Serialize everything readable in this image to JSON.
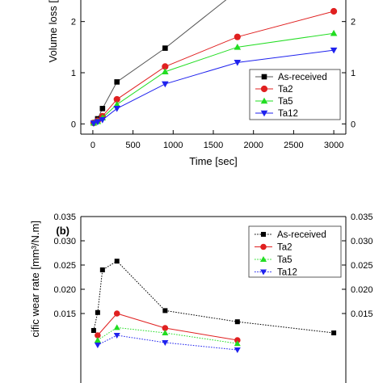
{
  "chart_data": [
    {
      "type": "line",
      "xlabel": "Time [sec]",
      "ylabel": "Volume loss [",
      "xlim": [
        -150,
        3150
      ],
      "ylim": [
        -0.2,
        2.5
      ],
      "x_ticks": [
        0,
        500,
        1000,
        1500,
        2000,
        2500,
        3000
      ],
      "x_tick_labels": [
        "0",
        "500",
        "1000",
        "1500",
        "2000",
        "2500",
        "3000"
      ],
      "y_ticks": [
        0,
        1,
        2
      ],
      "y_tick_labels": [
        "0",
        "1",
        "2"
      ],
      "right_y_tick_labels": [
        "0",
        "1",
        "2"
      ],
      "legend_position": "lower-right",
      "grid": false,
      "series": [
        {
          "name": "As-received",
          "marker": "square",
          "color": "#000000",
          "line_color": "#555555",
          "x": [
            10,
            60,
            120,
            300,
            900,
            1800
          ],
          "y": [
            0.02,
            0.1,
            0.3,
            0.82,
            1.48,
            2.6
          ]
        },
        {
          "name": "Ta2",
          "marker": "circle",
          "color": "#e02020",
          "line_color": "#e02020",
          "x": [
            10,
            60,
            120,
            300,
            900,
            1800,
            3000
          ],
          "y": [
            0.02,
            0.06,
            0.15,
            0.48,
            1.12,
            1.7,
            2.2
          ]
        },
        {
          "name": "Ta5",
          "marker": "triangle-up",
          "color": "#22dd22",
          "line_color": "#22dd22",
          "x": [
            10,
            60,
            120,
            300,
            900,
            1800,
            3000
          ],
          "y": [
            0.02,
            0.05,
            0.12,
            0.38,
            1.02,
            1.5,
            1.77
          ]
        },
        {
          "name": "Ta12",
          "marker": "triangle-down",
          "color": "#1f22ee",
          "line_color": "#1f22ee",
          "x": [
            10,
            60,
            120,
            300,
            900,
            1800,
            3000
          ],
          "y": [
            0.01,
            0.04,
            0.08,
            0.3,
            0.78,
            1.2,
            1.44
          ]
        }
      ]
    },
    {
      "type": "line",
      "panel_label": "(b)",
      "xlabel": "",
      "ylabel": "cific wear rate [mm³/N.m]",
      "xlim": [
        -150,
        3150
      ],
      "ylim": [
        0.0,
        0.035
      ],
      "y_ticks": [
        0.015,
        0.02,
        0.025,
        0.03,
        0.035
      ],
      "y_tick_labels": [
        "0.015",
        "0.020",
        "0.025",
        "0.030",
        "0.035"
      ],
      "right_y_tick_labels": [
        "0.015",
        "0.020",
        "0.025",
        "0.030",
        "0.035"
      ],
      "legend_position": "top-right",
      "grid": false,
      "series": [
        {
          "name": "As-received",
          "marker": "square",
          "color": "#000000",
          "line_color": "#000000",
          "dash": true,
          "x": [
            10,
            60,
            120,
            300,
            900,
            1800,
            3000
          ],
          "y": [
            0.0115,
            0.0152,
            0.024,
            0.0258,
            0.0156,
            0.0133,
            0.011
          ]
        },
        {
          "name": "Ta2",
          "marker": "circle",
          "color": "#e02020",
          "line_color": "#e02020",
          "dash": false,
          "x": [
            60,
            300,
            900,
            1800
          ],
          "y": [
            0.0105,
            0.015,
            0.012,
            0.0095
          ]
        },
        {
          "name": "Ta5",
          "marker": "triangle-up",
          "color": "#22dd22",
          "line_color": "#22dd22",
          "dash": true,
          "x": [
            60,
            300,
            900,
            1800
          ],
          "y": [
            0.0095,
            0.0121,
            0.011,
            0.0088
          ]
        },
        {
          "name": "Ta12",
          "marker": "triangle-down",
          "color": "#1f22ee",
          "line_color": "#1f22ee",
          "dash": true,
          "x": [
            60,
            300,
            900,
            1800
          ],
          "y": [
            0.0085,
            0.0105,
            0.009,
            0.0075
          ]
        }
      ]
    }
  ]
}
